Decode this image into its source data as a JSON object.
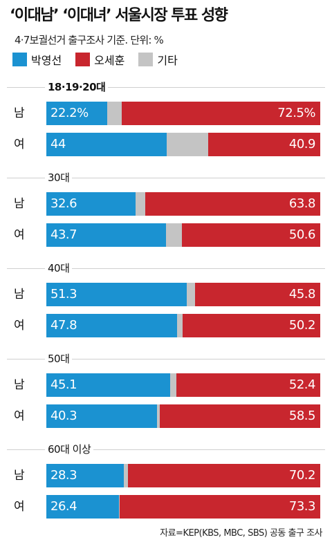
{
  "title": "‘이대남’ ‘이대녀’ 서울시장 투표 성향",
  "subtitle": "4·7보궐선거 출구조사 기준. 단위: %",
  "legend": [
    {
      "label": "박영선",
      "color": "#1b92d1"
    },
    {
      "label": "오세훈",
      "color": "#c8262e"
    },
    {
      "label": "기타",
      "color": "#c4c4c4"
    }
  ],
  "source": "자료=KEP(KBS, MBC, SBS) 공동 출구 조사",
  "chart_data": {
    "type": "bar",
    "orientation": "horizontal-stacked-100",
    "series_names": [
      "박영선",
      "오세훈",
      "기타"
    ],
    "groups": [
      {
        "label": "18·19·20대",
        "rows": [
          {
            "gender": "남",
            "park": 22.2,
            "park_label": "22.2%",
            "oh": 72.5,
            "oh_label": "72.5%"
          },
          {
            "gender": "여",
            "park": 44,
            "park_label": "44",
            "oh": 40.9,
            "oh_label": "40.9"
          }
        ]
      },
      {
        "label": "30대",
        "rows": [
          {
            "gender": "남",
            "park": 32.6,
            "park_label": "32.6",
            "oh": 63.8,
            "oh_label": "63.8"
          },
          {
            "gender": "여",
            "park": 43.7,
            "park_label": "43.7",
            "oh": 50.6,
            "oh_label": "50.6"
          }
        ]
      },
      {
        "label": "40대",
        "rows": [
          {
            "gender": "남",
            "park": 51.3,
            "park_label": "51.3",
            "oh": 45.8,
            "oh_label": "45.8"
          },
          {
            "gender": "여",
            "park": 47.8,
            "park_label": "47.8",
            "oh": 50.2,
            "oh_label": "50.2"
          }
        ]
      },
      {
        "label": "50대",
        "rows": [
          {
            "gender": "남",
            "park": 45.1,
            "park_label": "45.1",
            "oh": 52.4,
            "oh_label": "52.4"
          },
          {
            "gender": "여",
            "park": 40.3,
            "park_label": "40.3",
            "oh": 58.5,
            "oh_label": "58.5"
          }
        ]
      },
      {
        "label": "60대 이상",
        "rows": [
          {
            "gender": "남",
            "park": 28.3,
            "park_label": "28.3",
            "oh": 70.2,
            "oh_label": "70.2"
          },
          {
            "gender": "여",
            "park": 26.4,
            "park_label": "26.4",
            "oh": 73.3,
            "oh_label": "73.3"
          }
        ]
      }
    ]
  }
}
